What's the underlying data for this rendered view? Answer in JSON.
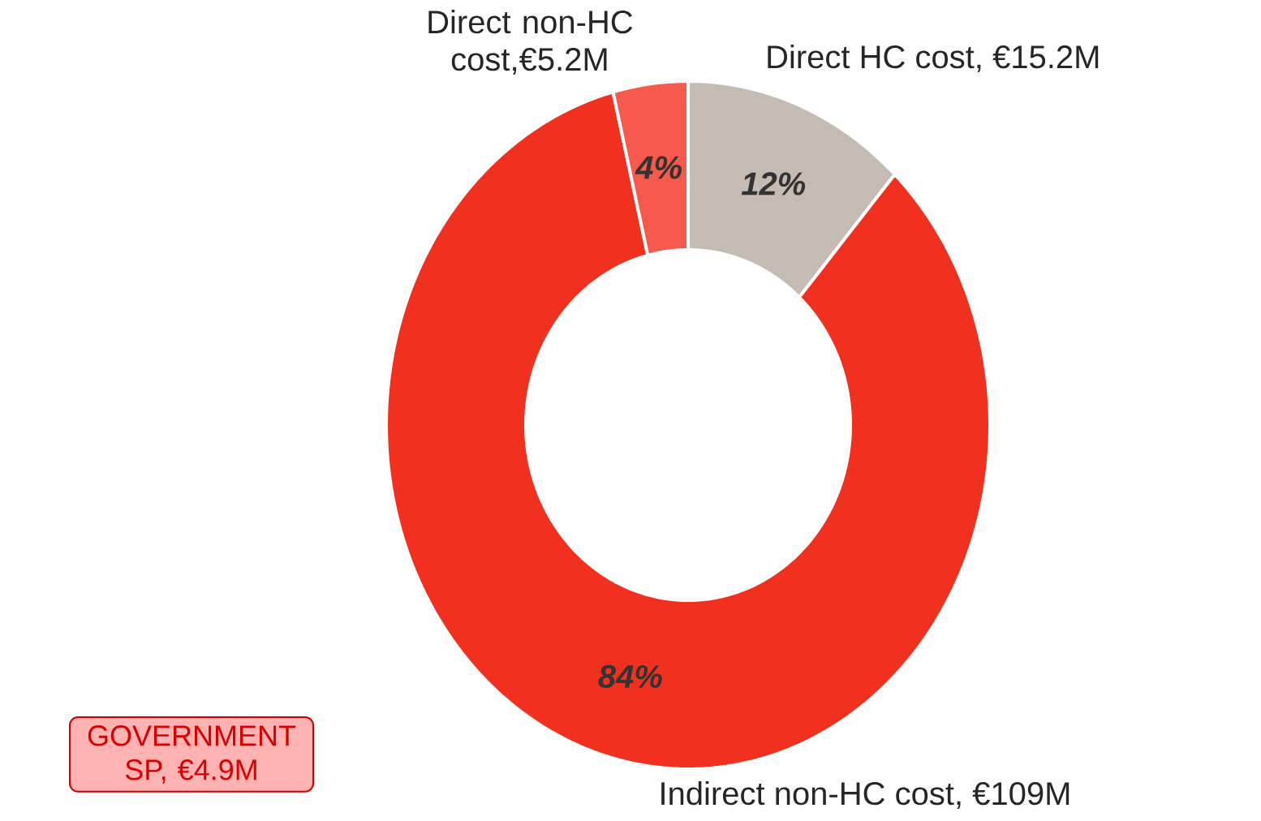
{
  "chart_data": {
    "type": "donut",
    "categories": [
      "Direct HC cost, €15.2M",
      "Indirect non-HC cost, €109M",
      "Direct non-HC cost,€5.2M"
    ],
    "values": [
      12,
      84,
      4
    ],
    "colors": [
      "#c4bcb2",
      "#f2301f",
      "#f55a4c"
    ],
    "value_labels": [
      "12%",
      "84%",
      "4%"
    ],
    "annotations": [
      "GOVERNMENT SP, €4.9M"
    ]
  }
}
